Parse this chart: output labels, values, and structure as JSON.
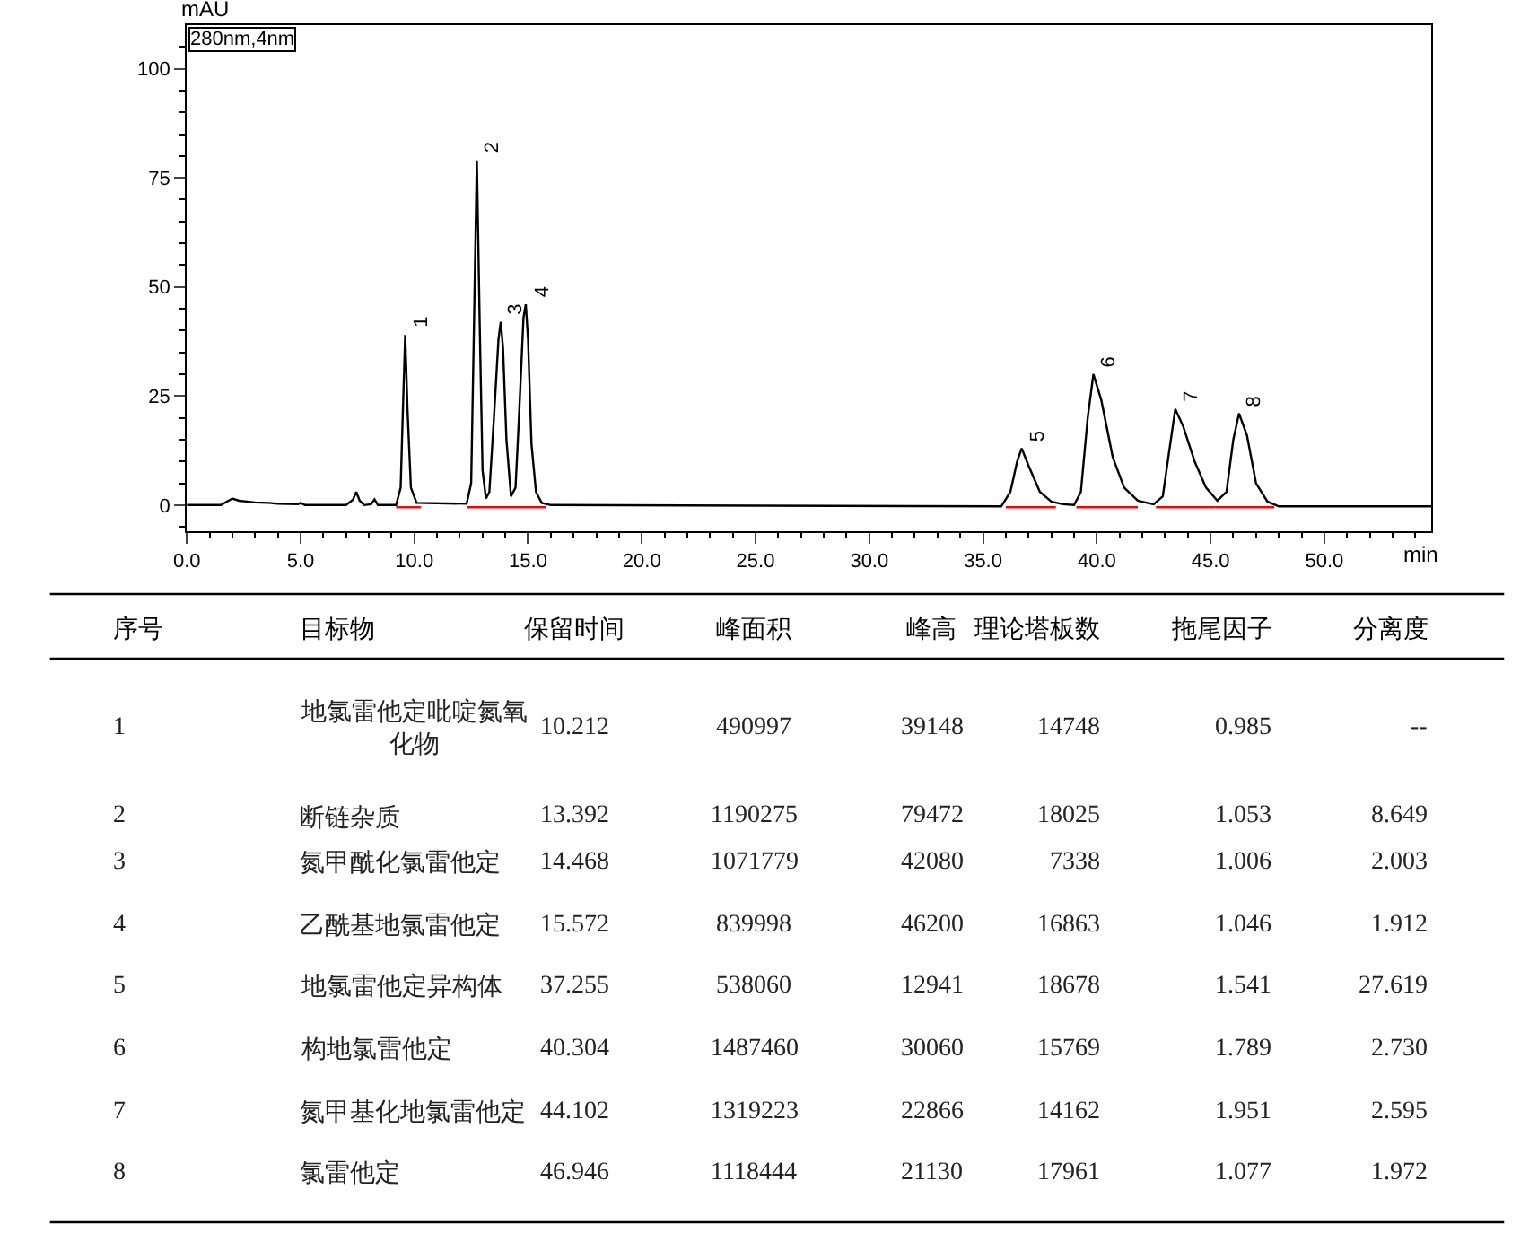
{
  "chart_data": [
    {
      "type": "line",
      "xlabel": "min",
      "ylabel": "mAU",
      "xlim": [
        0,
        54.7
      ],
      "ylim": [
        -6,
        110
      ],
      "xticks": [
        {
          "value": 0,
          "label": "0.0"
        },
        {
          "value": 5,
          "label": "5.0"
        },
        {
          "value": 10,
          "label": "10.0"
        },
        {
          "value": 15,
          "label": "15.0"
        },
        {
          "value": 20,
          "label": "20.0"
        },
        {
          "value": 25,
          "label": "25.0"
        },
        {
          "value": 30,
          "label": "30.0"
        },
        {
          "value": 35,
          "label": "35.0"
        },
        {
          "value": 40,
          "label": "40.0"
        },
        {
          "value": 45,
          "label": "45.0"
        },
        {
          "value": 50,
          "label": "50.0"
        },
        {
          "value": 1,
          "label": null
        },
        {
          "value": 2,
          "label": null
        },
        {
          "value": 3,
          "label": null
        },
        {
          "value": 4,
          "label": null
        },
        {
          "value": 6,
          "label": null
        },
        {
          "value": 7,
          "label": null
        },
        {
          "value": 8,
          "label": null
        },
        {
          "value": 9,
          "label": null
        },
        {
          "value": 11,
          "label": null
        },
        {
          "value": 12,
          "label": null
        },
        {
          "value": 13,
          "label": null
        },
        {
          "value": 14,
          "label": null
        },
        {
          "value": 16,
          "label": null
        },
        {
          "value": 17,
          "label": null
        },
        {
          "value": 18,
          "label": null
        },
        {
          "value": 19,
          "label": null
        },
        {
          "value": 21,
          "label": null
        },
        {
          "value": 22,
          "label": null
        },
        {
          "value": 23,
          "label": null
        },
        {
          "value": 24,
          "label": null
        },
        {
          "value": 26,
          "label": null
        },
        {
          "value": 27,
          "label": null
        },
        {
          "value": 28,
          "label": null
        },
        {
          "value": 29,
          "label": null
        },
        {
          "value": 31,
          "label": null
        },
        {
          "value": 32,
          "label": null
        },
        {
          "value": 33,
          "label": null
        },
        {
          "value": 34,
          "label": null
        },
        {
          "value": 36,
          "label": null
        },
        {
          "value": 37,
          "label": null
        },
        {
          "value": 38,
          "label": null
        },
        {
          "value": 39,
          "label": null
        },
        {
          "value": 41,
          "label": null
        },
        {
          "value": 42,
          "label": null
        },
        {
          "value": 43,
          "label": null
        },
        {
          "value": 44,
          "label": null
        },
        {
          "value": 46,
          "label": null
        },
        {
          "value": 47,
          "label": null
        },
        {
          "value": 48,
          "label": null
        },
        {
          "value": 49,
          "label": null
        },
        {
          "value": 51,
          "label": null
        },
        {
          "value": 52,
          "label": null
        },
        {
          "value": 53,
          "label": null
        },
        {
          "value": 54,
          "label": null
        }
      ],
      "yticks": [
        0,
        25,
        50,
        75,
        100,
        {
          "value": -5,
          "label": null
        },
        {
          "value": 5,
          "label": null
        },
        {
          "value": 10,
          "label": null
        },
        {
          "value": 15,
          "label": null
        },
        {
          "value": 20,
          "label": null
        },
        {
          "value": 30,
          "label": null
        },
        {
          "value": 35,
          "label": null
        },
        {
          "value": 40,
          "label": null
        },
        {
          "value": 45,
          "label": null
        },
        {
          "value": 55,
          "label": null
        },
        {
          "value": 60,
          "label": null
        },
        {
          "value": 65,
          "label": null
        },
        {
          "value": 70,
          "label": null
        },
        {
          "value": 80,
          "label": null
        },
        {
          "value": 85,
          "label": null
        },
        {
          "value": 90,
          "label": null
        },
        {
          "value": 95,
          "label": null
        },
        {
          "value": 105,
          "label": null
        }
      ],
      "marker": "none",
      "line_style": "solid",
      "series": [
        {
          "color": "#000000",
          "x": [
            0,
            1.5,
            2.0,
            2.3,
            3.0,
            3.6,
            4.0,
            4.9,
            5.0,
            5.2,
            7.0,
            7.3,
            7.45,
            7.6,
            7.8,
            8.1,
            8.25,
            8.4,
            9.2,
            9.4,
            9.5,
            9.6,
            9.7,
            9.85,
            10.1,
            12.3,
            12.5,
            12.62,
            12.75,
            12.88,
            13.0,
            13.15,
            13.3,
            13.5,
            13.7,
            13.8,
            13.9,
            14.05,
            14.25,
            14.45,
            14.6,
            14.8,
            14.9,
            15.0,
            15.15,
            15.35,
            15.6,
            16.0,
            35.8,
            36.2,
            36.5,
            36.7,
            37.0,
            37.5,
            38.0,
            38.5,
            39.0,
            39.3,
            39.6,
            39.85,
            40.2,
            40.7,
            41.2,
            41.8,
            42.5,
            42.9,
            43.2,
            43.45,
            43.8,
            44.3,
            44.8,
            45.3,
            45.7,
            46.0,
            46.25,
            46.6,
            47.0,
            47.5,
            48.0,
            54.7
          ],
          "values": [
            0,
            0,
            1.5,
            1,
            0.6,
            0.5,
            0.3,
            0.2,
            0.5,
            0,
            0,
            1.2,
            3,
            1,
            0,
            0.2,
            1.3,
            0,
            0,
            4,
            22,
            39,
            22,
            4,
            0.5,
            0.3,
            5,
            40,
            79,
            40,
            8,
            1.5,
            3,
            20,
            38,
            42,
            36,
            15,
            2,
            4,
            20,
            43,
            46,
            38,
            14,
            3,
            0.5,
            0,
            -0.3,
            3,
            10,
            13,
            9,
            3,
            0.8,
            0.2,
            0,
            3,
            20,
            30,
            24,
            11,
            4,
            1,
            0.2,
            2,
            13,
            22,
            18,
            10,
            4,
            1,
            3,
            15,
            21,
            16,
            5,
            0.8,
            -0.3,
            -0.3
          ]
        },
        {
          "color": "#ff0000",
          "x": [
            9.2,
            10.3,
            null,
            12.3,
            15.8,
            null,
            36.0,
            38.2,
            null,
            39.1,
            41.8,
            null,
            42.6,
            45.2,
            null,
            45.2,
            47.8
          ],
          "values": [
            -0.5,
            -0.5,
            null,
            -0.5,
            -0.5,
            null,
            -0.5,
            -0.5,
            null,
            -0.5,
            -0.5,
            null,
            -0.5,
            -0.5,
            null,
            -0.5,
            -0.5
          ]
        }
      ],
      "annotations": [
        "280nm,4nm",
        {
          "text": "1",
          "x": 9.6,
          "y": 39
        },
        {
          "text": "2",
          "x": 12.75,
          "y": 79
        },
        {
          "text": "3",
          "x": 13.8,
          "y": 42
        },
        {
          "text": "4",
          "x": 14.9,
          "y": 46
        },
        {
          "text": "5",
          "x": 36.7,
          "y": 13
        },
        {
          "text": "6",
          "x": 39.85,
          "y": 30
        },
        {
          "text": "7",
          "x": 43.45,
          "y": 22
        },
        {
          "text": "8",
          "x": 46.25,
          "y": 21
        }
      ]
    },
    {
      "type": "other",
      "categories": [
        "序号",
        "目标物",
        "保留时间",
        "峰面积",
        "峰高",
        "理论塔板数",
        "拖尾因子",
        "分离度"
      ],
      "cell_labels": [
        [
          "1",
          "地氯雷他定吡啶氮氧化物",
          "10.212",
          "490997",
          "39148",
          "14748",
          "0.985",
          "--"
        ],
        [
          "2",
          "断链杂质",
          "13.392",
          "1190275",
          "79472",
          "18025",
          "1.053",
          "8.649"
        ],
        [
          "3",
          "氮甲酰化氯雷他定",
          "14.468",
          "1071779",
          "42080",
          "7338",
          "1.006",
          "2.003"
        ],
        [
          "4",
          "乙酰基地氯雷他定",
          "15.572",
          "839998",
          "46200",
          "16863",
          "1.046",
          "1.912"
        ],
        [
          "5",
          "地氯雷他定异构体",
          "37.255",
          "538060",
          "12941",
          "18678",
          "1.541",
          "27.619"
        ],
        [
          "6",
          "构地氯雷他定",
          "40.304",
          "1487460",
          "30060",
          "15769",
          "1.789",
          "2.730"
        ],
        [
          "7",
          "氮甲基化地氯雷他定",
          "44.102",
          "1319223",
          "22866",
          "14162",
          "1.951",
          "2.595"
        ],
        [
          "8",
          "氯雷他定",
          "46.946",
          "1118444",
          "21130",
          "17961",
          "1.077",
          "1.972"
        ]
      ]
    }
  ]
}
